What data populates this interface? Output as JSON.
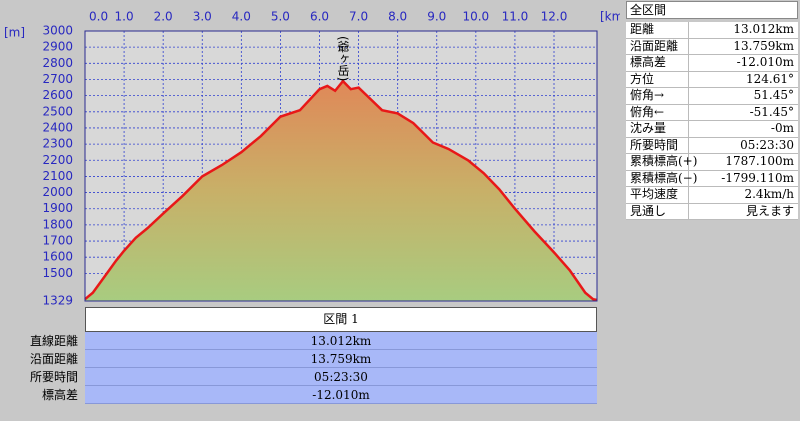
{
  "chart_data": {
    "type": "line",
    "y_unit_label": "[m]",
    "x_unit_label": "[km]",
    "annotations": [
      {
        "text": "(爺ヶ岳)",
        "x": 6.6
      }
    ],
    "xlim": [
      0,
      13.1
    ],
    "ylim": [
      1329,
      3000
    ],
    "xticks": [
      {
        "value": 0,
        "label": "0.0"
      },
      {
        "value": 1,
        "label": "1.0"
      },
      {
        "value": 2,
        "label": "2.0"
      },
      {
        "value": 3,
        "label": "3.0"
      },
      {
        "value": 4,
        "label": "4.0"
      },
      {
        "value": 5,
        "label": "5.0"
      },
      {
        "value": 6,
        "label": "6.0"
      },
      {
        "value": 7,
        "label": "7.0"
      },
      {
        "value": 8,
        "label": "8.0"
      },
      {
        "value": 9,
        "label": "9.0"
      },
      {
        "value": 10,
        "label": "10.0"
      },
      {
        "value": 11,
        "label": "11.0"
      },
      {
        "value": 12,
        "label": "12.0"
      }
    ],
    "yticks": [
      1329,
      1500,
      1600,
      1700,
      1800,
      1900,
      2000,
      2100,
      2200,
      2300,
      2400,
      2500,
      2600,
      2700,
      2800,
      2900,
      3000
    ],
    "grid": true,
    "color": "#e81818",
    "x": [
      0,
      0.2,
      0.5,
      0.8,
      1.0,
      1.3,
      1.6,
      2.0,
      2.5,
      3.0,
      3.5,
      4.0,
      4.5,
      5.0,
      5.5,
      6.0,
      6.2,
      6.4,
      6.6,
      6.8,
      7.0,
      7.3,
      7.6,
      8.0,
      8.4,
      8.9,
      9.3,
      9.8,
      10.2,
      10.6,
      11.0,
      11.5,
      12.0,
      12.4,
      12.8,
      13.0,
      13.1
    ],
    "values": [
      1340,
      1380,
      1480,
      1580,
      1640,
      1720,
      1780,
      1870,
      1980,
      2100,
      2170,
      2250,
      2350,
      2470,
      2510,
      2640,
      2660,
      2630,
      2690,
      2640,
      2650,
      2580,
      2510,
      2490,
      2430,
      2310,
      2270,
      2200,
      2120,
      2020,
      1900,
      1760,
      1630,
      1520,
      1380,
      1340,
      1335
    ]
  },
  "section_panel": {
    "title": "区間 1",
    "rows": [
      [
        "直線距離",
        "13.012km"
      ],
      [
        "沿面距離",
        "13.759km"
      ],
      [
        "所要時間",
        "05:23:30"
      ],
      [
        "標高差",
        "-12.010m"
      ]
    ]
  },
  "summary_panel": {
    "title": "全区間",
    "rows": [
      [
        "距離",
        "13.012km"
      ],
      [
        "沿面距離",
        "13.759km"
      ],
      [
        "標高差",
        "-12.010m"
      ],
      [
        "方位",
        "124.61°"
      ],
      [
        "俯角→",
        "51.45°"
      ],
      [
        "俯角←",
        "-51.45°"
      ],
      [
        "沈み量",
        "-0m"
      ],
      [
        "所要時間",
        "05:23:30"
      ],
      [
        "累積標高(+)",
        "1787.100m"
      ],
      [
        "累積標高(−)",
        "-1799.110m"
      ],
      [
        "平均速度",
        "2.4km/h"
      ],
      [
        "見通し",
        "見えます"
      ]
    ]
  }
}
